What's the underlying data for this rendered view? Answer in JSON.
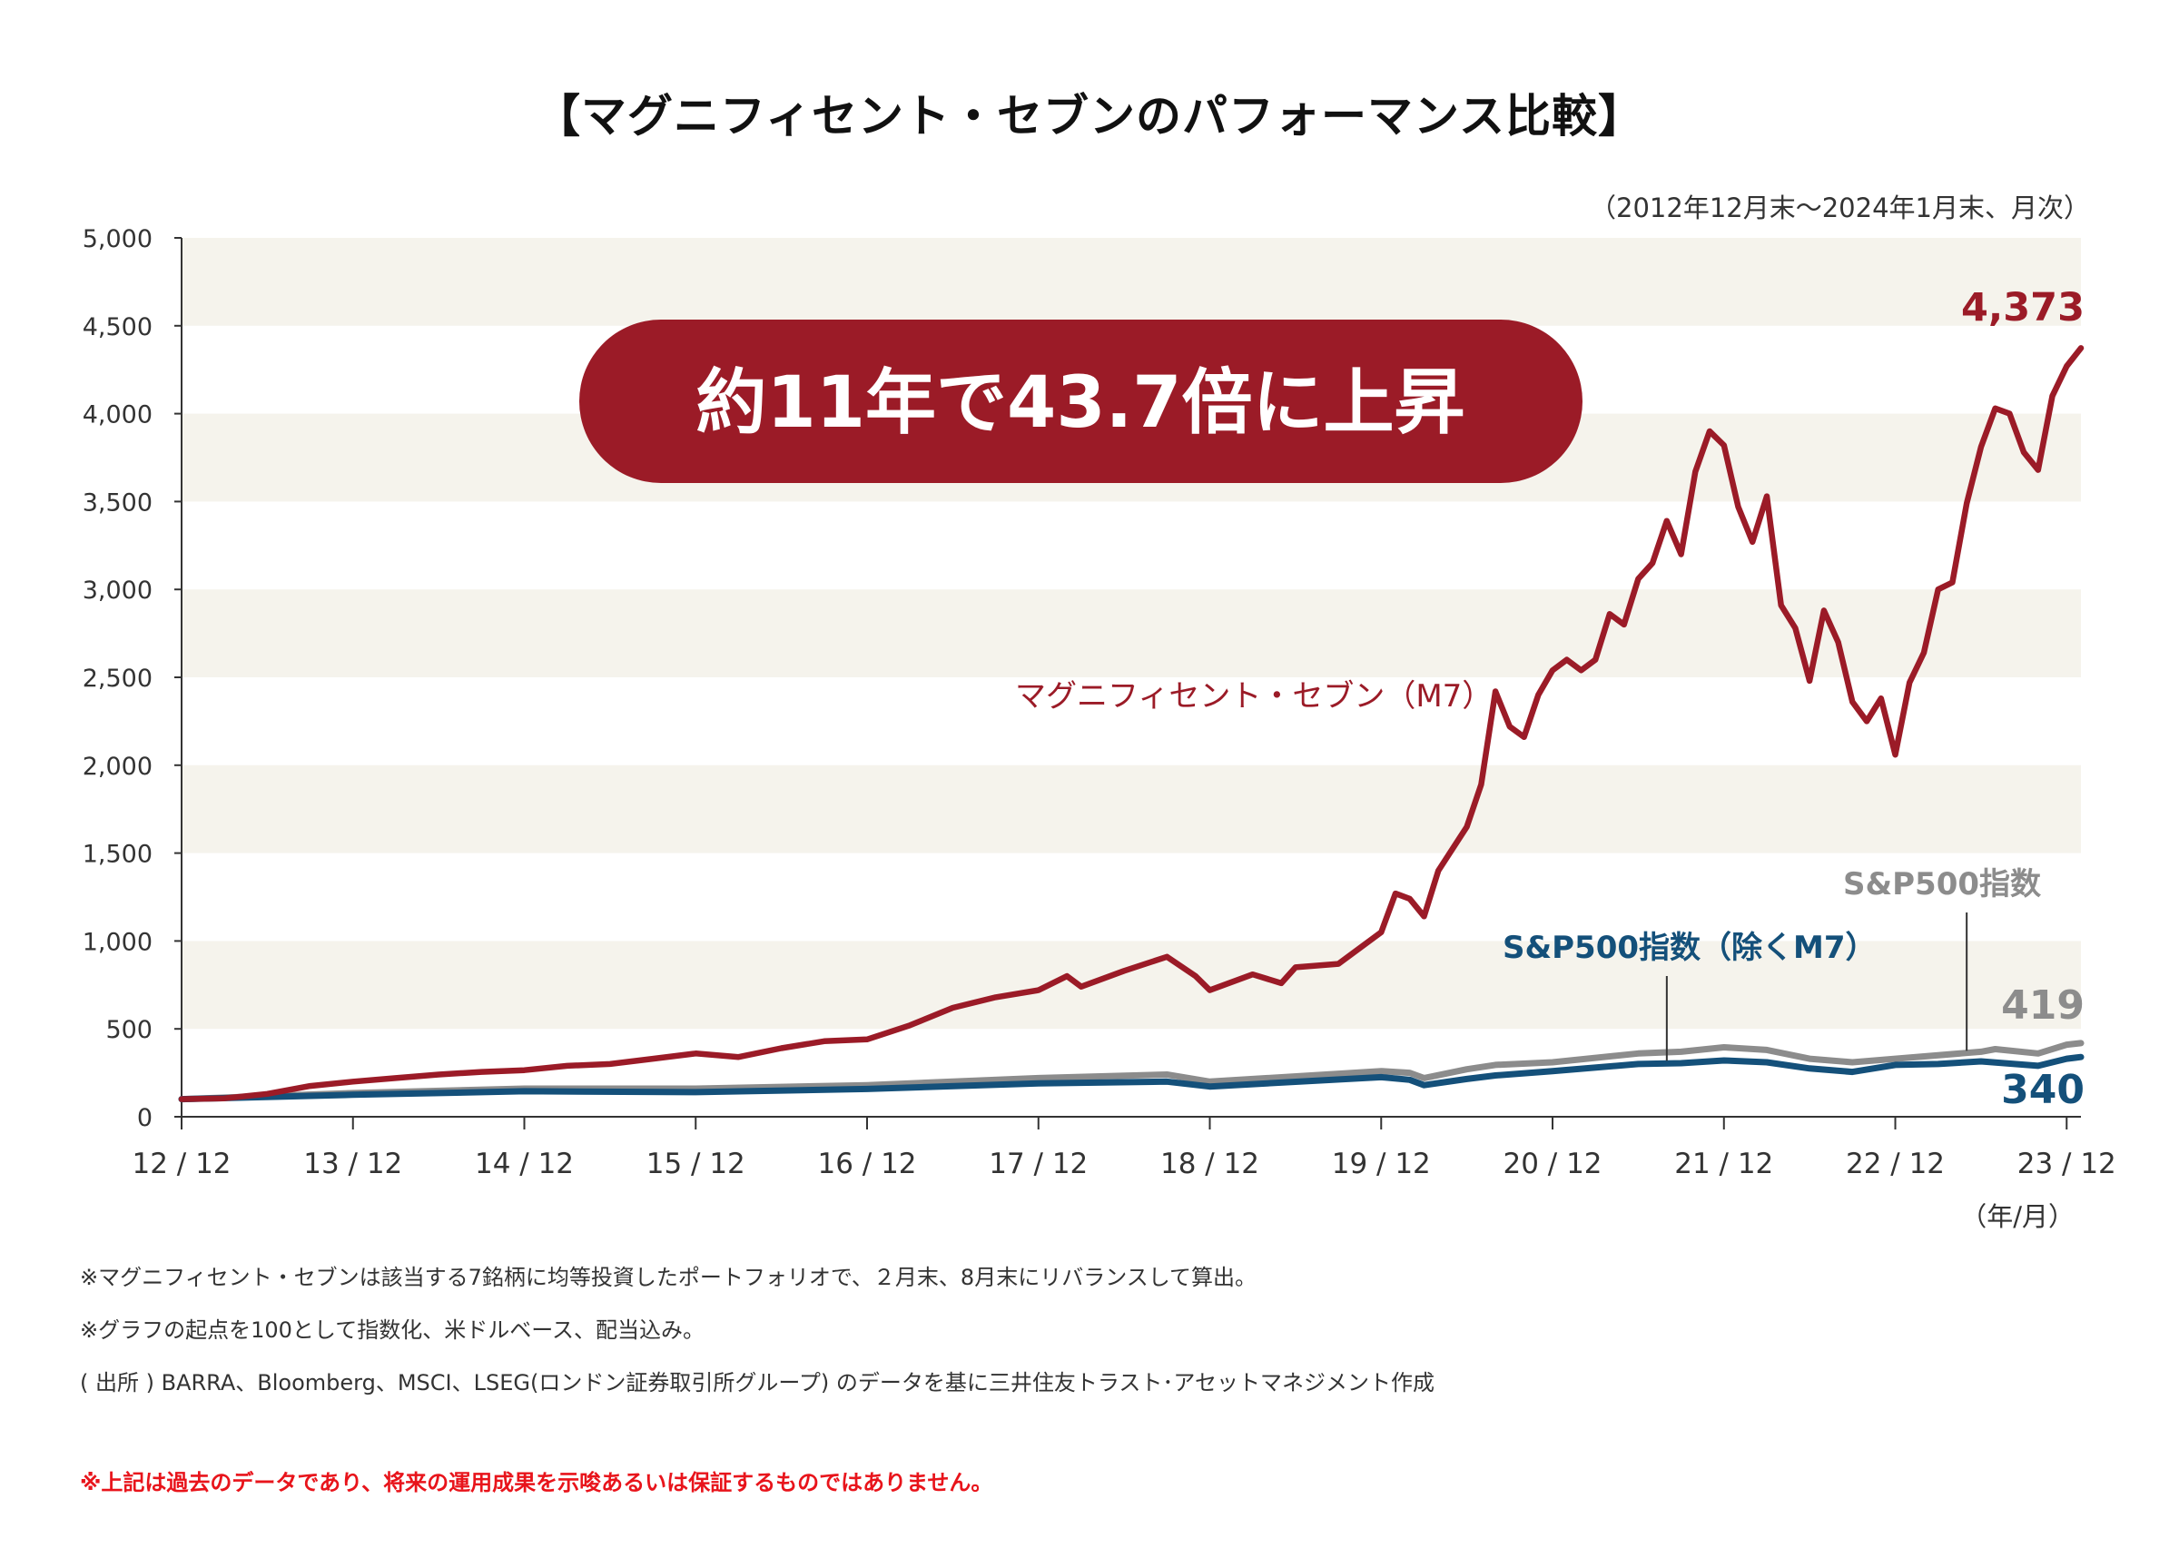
{
  "title": "【マグニフィセント・セブンのパフォーマンス比較】",
  "subtitle": "（2012年12月末～2024年1月末、月次）",
  "callout": "約11年で43.7倍に上昇",
  "colors": {
    "m7": "#9b1b27",
    "sp500": "#8c8c8c",
    "sp500_ex": "#14507a",
    "band": "#f5f3ec",
    "callout_bg": "#9b1b27"
  },
  "chart_data": {
    "type": "line",
    "ylim": [
      0,
      5000
    ],
    "yticks": [
      "0",
      "500",
      "1,000",
      "1,500",
      "2,000",
      "2,500",
      "3,000",
      "3,500",
      "4,000",
      "4,500",
      "5,000"
    ],
    "xticks": [
      "12 / 12",
      "13 / 12",
      "14 / 12",
      "15 / 12",
      "16 / 12",
      "17 / 12",
      "18 / 12",
      "19 / 12",
      "20 / 12",
      "21 / 12",
      "22 / 12",
      "23 / 12"
    ],
    "xunit": "（年/月）",
    "grid": "alternating horizontal bands",
    "end_labels": {
      "m7": "4,373",
      "sp500": "419",
      "sp500_ex": "340"
    },
    "series": [
      {
        "key": "m7",
        "name": "マグニフィセント・セブン（M7）",
        "points": [
          [
            "2012-12",
            100
          ],
          [
            "2013-03",
            105
          ],
          [
            "2013-06",
            130
          ],
          [
            "2013-09",
            175
          ],
          [
            "2013-12",
            200
          ],
          [
            "2014-03",
            220
          ],
          [
            "2014-06",
            240
          ],
          [
            "2014-09",
            255
          ],
          [
            "2014-12",
            265
          ],
          [
            "2015-03",
            290
          ],
          [
            "2015-06",
            300
          ],
          [
            "2015-09",
            330
          ],
          [
            "2015-12",
            360
          ],
          [
            "2016-03",
            340
          ],
          [
            "2016-06",
            390
          ],
          [
            "2016-09",
            430
          ],
          [
            "2016-12",
            440
          ],
          [
            "2017-03",
            520
          ],
          [
            "2017-06",
            620
          ],
          [
            "2017-09",
            680
          ],
          [
            "2017-12",
            720
          ],
          [
            "2018-02",
            800
          ],
          [
            "2018-03",
            740
          ],
          [
            "2018-06",
            830
          ],
          [
            "2018-09",
            910
          ],
          [
            "2018-11",
            800
          ],
          [
            "2018-12",
            720
          ],
          [
            "2019-03",
            810
          ],
          [
            "2019-05",
            760
          ],
          [
            "2019-06",
            850
          ],
          [
            "2019-09",
            870
          ],
          [
            "2019-12",
            1050
          ],
          [
            "2020-01",
            1270
          ],
          [
            "2020-02",
            1240
          ],
          [
            "2020-03",
            1140
          ],
          [
            "2020-04",
            1400
          ],
          [
            "2020-06",
            1650
          ],
          [
            "2020-07",
            1890
          ],
          [
            "2020-08",
            2420
          ],
          [
            "2020-09",
            2220
          ],
          [
            "2020-10",
            2160
          ],
          [
            "2020-11",
            2400
          ],
          [
            "2020-12",
            2540
          ],
          [
            "2021-01",
            2600
          ],
          [
            "2021-02",
            2540
          ],
          [
            "2021-03",
            2600
          ],
          [
            "2021-04",
            2860
          ],
          [
            "2021-05",
            2800
          ],
          [
            "2021-06",
            3060
          ],
          [
            "2021-07",
            3150
          ],
          [
            "2021-08",
            3390
          ],
          [
            "2021-09",
            3200
          ],
          [
            "2021-10",
            3670
          ],
          [
            "2021-11",
            3900
          ],
          [
            "2021-12",
            3820
          ],
          [
            "2022-01",
            3470
          ],
          [
            "2022-02",
            3270
          ],
          [
            "2022-03",
            3530
          ],
          [
            "2022-04",
            2910
          ],
          [
            "2022-05",
            2780
          ],
          [
            "2022-06",
            2480
          ],
          [
            "2022-07",
            2880
          ],
          [
            "2022-08",
            2700
          ],
          [
            "2022-09",
            2360
          ],
          [
            "2022-10",
            2250
          ],
          [
            "2022-11",
            2380
          ],
          [
            "2022-12",
            2060
          ],
          [
            "2023-01",
            2470
          ],
          [
            "2023-02",
            2640
          ],
          [
            "2023-03",
            3000
          ],
          [
            "2023-04",
            3040
          ],
          [
            "2023-05",
            3490
          ],
          [
            "2023-06",
            3810
          ],
          [
            "2023-07",
            4030
          ],
          [
            "2023-08",
            4000
          ],
          [
            "2023-09",
            3780
          ],
          [
            "2023-10",
            3680
          ],
          [
            "2023-11",
            4100
          ],
          [
            "2023-12",
            4270
          ],
          [
            "2024-01",
            4373
          ]
        ]
      },
      {
        "key": "sp500",
        "name": "S&P500指数",
        "points": [
          [
            "2012-12",
            100
          ],
          [
            "2013-12",
            135
          ],
          [
            "2014-12",
            160
          ],
          [
            "2015-12",
            160
          ],
          [
            "2016-12",
            180
          ],
          [
            "2017-12",
            220
          ],
          [
            "2018-09",
            240
          ],
          [
            "2018-12",
            200
          ],
          [
            "2019-12",
            260
          ],
          [
            "2020-02",
            250
          ],
          [
            "2020-03",
            220
          ],
          [
            "2020-06",
            270
          ],
          [
            "2020-08",
            295
          ],
          [
            "2020-12",
            310
          ],
          [
            "2021-06",
            360
          ],
          [
            "2021-09",
            370
          ],
          [
            "2021-12",
            395
          ],
          [
            "2022-03",
            380
          ],
          [
            "2022-06",
            330
          ],
          [
            "2022-09",
            310
          ],
          [
            "2022-12",
            330
          ],
          [
            "2023-06",
            370
          ],
          [
            "2023-07",
            385
          ],
          [
            "2023-10",
            360
          ],
          [
            "2023-12",
            410
          ],
          [
            "2024-01",
            419
          ]
        ]
      },
      {
        "key": "sp500_ex",
        "name": "S&P500指数（除くM7）",
        "points": [
          [
            "2012-12",
            100
          ],
          [
            "2013-12",
            125
          ],
          [
            "2014-12",
            145
          ],
          [
            "2015-12",
            140
          ],
          [
            "2016-12",
            158
          ],
          [
            "2017-12",
            190
          ],
          [
            "2018-09",
            200
          ],
          [
            "2018-12",
            172
          ],
          [
            "2019-12",
            225
          ],
          [
            "2020-02",
            210
          ],
          [
            "2020-03",
            180
          ],
          [
            "2020-06",
            215
          ],
          [
            "2020-08",
            235
          ],
          [
            "2020-12",
            260
          ],
          [
            "2021-06",
            300
          ],
          [
            "2021-09",
            305
          ],
          [
            "2021-12",
            320
          ],
          [
            "2022-03",
            310
          ],
          [
            "2022-06",
            275
          ],
          [
            "2022-09",
            255
          ],
          [
            "2022-12",
            295
          ],
          [
            "2023-03",
            300
          ],
          [
            "2023-06",
            315
          ],
          [
            "2023-10",
            290
          ],
          [
            "2023-12",
            330
          ],
          [
            "2024-01",
            340
          ]
        ]
      }
    ]
  },
  "notes": [
    "※マグニフィセント・セブンは該当する7銘柄に均等投資したポートフォリオで、２月末、8月末にリバランスして算出。",
    "※グラフの起点を100として指数化、米ドルベース、配当込み。",
    "( 出所 ) BARRA、Bloomberg、MSCI、LSEG(ロンドン証券取引所グループ) のデータを基に三井住友トラスト･アセットマネジメント作成"
  ],
  "disclaimer": "※上記は過去のデータであり、将来の運用成果を示唆あるいは保証するものではありません。"
}
